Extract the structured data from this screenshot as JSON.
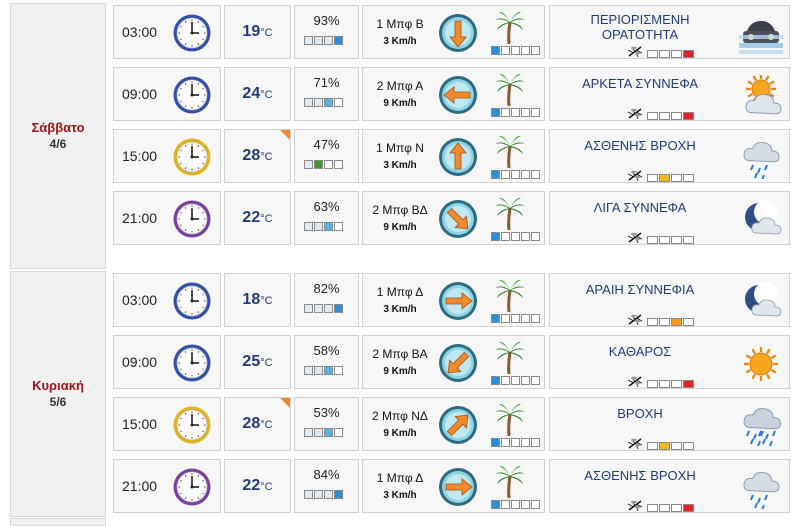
{
  "days": [
    {
      "name": "Σάββατο",
      "date": "4/6",
      "rows": [
        {
          "time": "03:00",
          "clock": "blue",
          "temp": "19",
          "unit": "°C",
          "hot": false,
          "humidity": "93%",
          "hum_level": 4,
          "hum_color": "#2b8fd6",
          "wind_bf": "1 Μπφ Β",
          "wind_kmh": "3 Km/h",
          "wind_dir": "down",
          "wind_level": 1,
          "condition": [
            "ΠΕΡΙΟΡΙΣΜΕΝΗ",
            "ΟΡΑΤΟΤΗΤΑ"
          ],
          "icon": "fog-car-icon",
          "mosq_level": 4,
          "mosq_color": "#e0202a"
        },
        {
          "time": "09:00",
          "clock": "blue",
          "temp": "24",
          "unit": "°C",
          "hot": false,
          "humidity": "71%",
          "hum_level": 3,
          "hum_color": "#56b2ea",
          "wind_bf": "2 Μπφ Α",
          "wind_kmh": "9 Km/h",
          "wind_dir": "left",
          "wind_level": 1,
          "condition": [
            "ΑΡΚΕΤΑ ΣΥΝΝΕΦΑ"
          ],
          "icon": "sun-cloud-icon",
          "mosq_level": 4,
          "mosq_color": "#e0202a"
        },
        {
          "time": "15:00",
          "clock": "yellow",
          "temp": "28",
          "unit": "°C",
          "hot": true,
          "humidity": "47%",
          "hum_level": 2,
          "hum_color": "#3f9a2e",
          "wind_bf": "1 Μπφ Ν",
          "wind_kmh": "3 Km/h",
          "wind_dir": "up",
          "wind_level": 1,
          "condition": [
            "ΑΣΘΕΝΗΣ ΒΡΟΧΗ"
          ],
          "icon": "light-rain-icon",
          "mosq_level": 2,
          "mosq_color": "#f3b81f"
        },
        {
          "time": "21:00",
          "clock": "purple",
          "temp": "22",
          "unit": "°C",
          "hot": false,
          "humidity": "63%",
          "hum_level": 3,
          "hum_color": "#56b2ea",
          "wind_bf": "2 Μπφ ΒΔ",
          "wind_kmh": "9 Km/h",
          "wind_dir": "down-right",
          "wind_level": 1,
          "condition": [
            "ΛΙΓΑ ΣΥΝΝΕΦΑ"
          ],
          "icon": "moon-cloud-icon",
          "mosq_level": 0,
          "mosq_color": "#ffffff"
        }
      ]
    },
    {
      "name": "Κυριακή",
      "date": "5/6",
      "rows": [
        {
          "time": "03:00",
          "clock": "blue",
          "temp": "18",
          "unit": "°C",
          "hot": false,
          "humidity": "82%",
          "hum_level": 4,
          "hum_color": "#2b8fd6",
          "wind_bf": "1 Μπφ Δ",
          "wind_kmh": "3 Km/h",
          "wind_dir": "right",
          "wind_level": 1,
          "condition": [
            "ΑΡΑΙΗ ΣΥΝΝΕΦΙΑ"
          ],
          "icon": "moon-cloud-icon",
          "mosq_level": 3,
          "mosq_color": "#f39a1f"
        },
        {
          "time": "09:00",
          "clock": "blue",
          "temp": "25",
          "unit": "°C",
          "hot": false,
          "humidity": "58%",
          "hum_level": 3,
          "hum_color": "#56b2ea",
          "wind_bf": "2 Μπφ ΒΑ",
          "wind_kmh": "9 Km/h",
          "wind_dir": "down-left",
          "wind_level": 1,
          "condition": [
            "ΚΑΘΑΡΟΣ"
          ],
          "icon": "sun-icon",
          "mosq_level": 4,
          "mosq_color": "#e0202a"
        },
        {
          "time": "15:00",
          "clock": "yellow",
          "temp": "28",
          "unit": "°C",
          "hot": true,
          "humidity": "53%",
          "hum_level": 3,
          "hum_color": "#56b2ea",
          "wind_bf": "2 Μπφ ΝΔ",
          "wind_kmh": "9 Km/h",
          "wind_dir": "up-right",
          "wind_level": 1,
          "condition": [
            "ΒΡΟΧΗ"
          ],
          "icon": "rain-icon",
          "mosq_level": 2,
          "mosq_color": "#f3b81f"
        },
        {
          "time": "21:00",
          "clock": "purple",
          "temp": "22",
          "unit": "°C",
          "hot": false,
          "humidity": "84%",
          "hum_level": 4,
          "hum_color": "#2b8fd6",
          "wind_bf": "1 Μπφ Δ",
          "wind_kmh": "3 Km/h",
          "wind_dir": "right",
          "wind_level": 1,
          "condition": [
            "ΑΣΘΕΝΗΣ ΒΡΟΧΗ"
          ],
          "icon": "light-rain-icon",
          "mosq_level": 4,
          "mosq_color": "#e0202a"
        }
      ]
    }
  ]
}
